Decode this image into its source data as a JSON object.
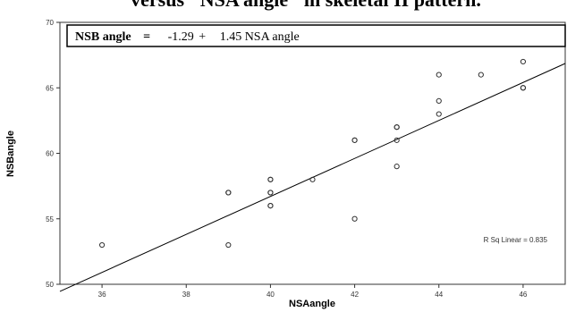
{
  "page": {
    "caption": "versus \"NSA angle\" in skeletal II pattern."
  },
  "chart_data": {
    "type": "scatter",
    "title": "",
    "xlabel": "NSAangle",
    "ylabel": "NSBangle",
    "xlim": [
      35,
      47
    ],
    "ylim": [
      50,
      70
    ],
    "xticks": [
      36,
      38,
      40,
      42,
      44,
      46
    ],
    "yticks": [
      50,
      55,
      60,
      65,
      70
    ],
    "grid": false,
    "points": [
      {
        "x": 36,
        "y": 53
      },
      {
        "x": 39,
        "y": 53
      },
      {
        "x": 39,
        "y": 57
      },
      {
        "x": 39,
        "y": 57
      },
      {
        "x": 40,
        "y": 56
      },
      {
        "x": 40,
        "y": 56
      },
      {
        "x": 40,
        "y": 57
      },
      {
        "x": 40,
        "y": 57
      },
      {
        "x": 40,
        "y": 58
      },
      {
        "x": 40,
        "y": 58
      },
      {
        "x": 41,
        "y": 58
      },
      {
        "x": 42,
        "y": 55
      },
      {
        "x": 42,
        "y": 61
      },
      {
        "x": 42,
        "y": 61
      },
      {
        "x": 43,
        "y": 59
      },
      {
        "x": 43,
        "y": 61
      },
      {
        "x": 43,
        "y": 62
      },
      {
        "x": 43,
        "y": 62
      },
      {
        "x": 44,
        "y": 63
      },
      {
        "x": 44,
        "y": 64
      },
      {
        "x": 44,
        "y": 66
      },
      {
        "x": 45,
        "y": 66
      },
      {
        "x": 46,
        "y": 65
      },
      {
        "x": 46,
        "y": 65
      },
      {
        "x": 46,
        "y": 67
      }
    ],
    "fit_line": {
      "intercept": -1.29,
      "slope": 1.45
    },
    "equation": {
      "left": "NSB angle",
      "eq": "=",
      "intercept": "-1.29",
      "plus": "+",
      "right": "1.45 NSA angle"
    },
    "rsq_label": "R Sq Linear = 0.835"
  }
}
